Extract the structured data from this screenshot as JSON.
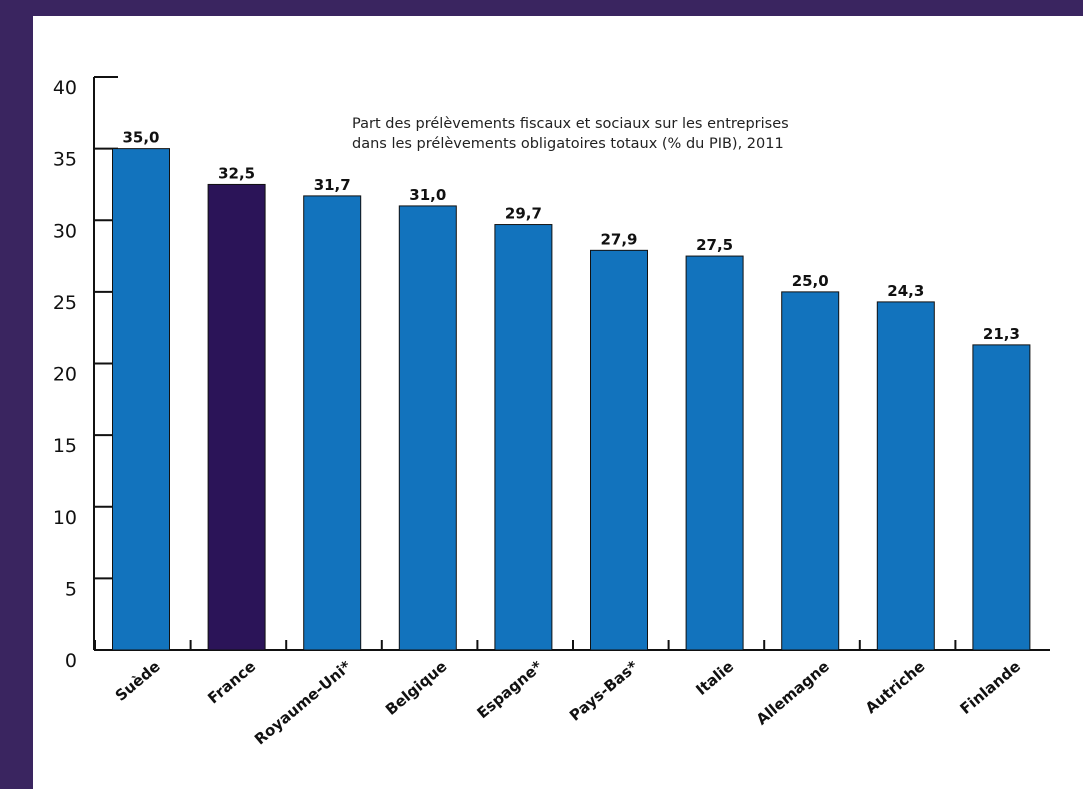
{
  "chart_data": {
    "type": "bar",
    "title_lines": [
      "Part des prélèvements fiscaux et sociaux sur les entreprises",
      "dans les prélèvements obligatoires totaux (% du PIB), 2011"
    ],
    "categories": [
      "Suède",
      "France",
      "Royaume-Uni*",
      "Belgique",
      "Espagne*",
      "Pays-Bas*",
      "Italie",
      "Allemagne",
      "Autriche",
      "Finlande"
    ],
    "values": [
      35.0,
      32.5,
      31.7,
      31.0,
      29.7,
      27.9,
      27.5,
      25.0,
      24.3,
      21.3
    ],
    "value_labels": [
      "35,0",
      "32,5",
      "31,7",
      "31,0",
      "29,7",
      "27,9",
      "27,5",
      "25,0",
      "24,3",
      "21,3"
    ],
    "y_ticks": [
      0,
      5,
      10,
      15,
      20,
      25,
      30,
      35,
      40
    ],
    "ylim": [
      0,
      40
    ],
    "highlight_category": "France",
    "grid": false,
    "legend": "none"
  },
  "colors": {
    "bar": "#1273bd",
    "highlight_bar": "#2b1458",
    "border": "#3a2560",
    "axis": "#111111"
  }
}
